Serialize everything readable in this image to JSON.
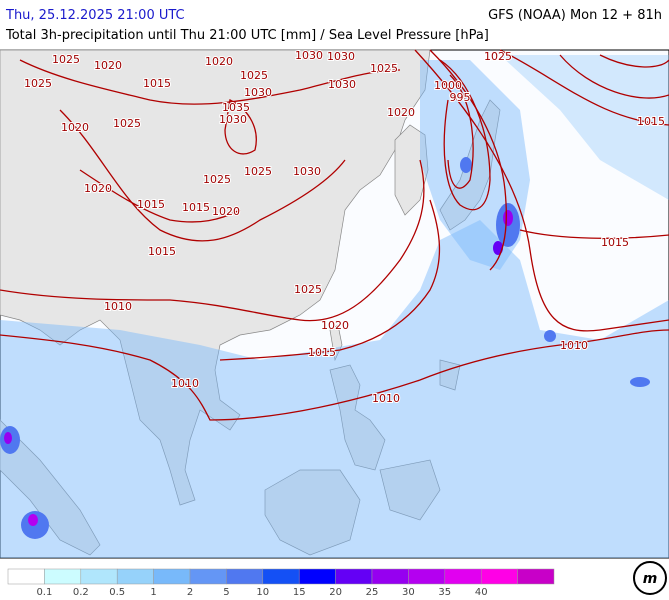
{
  "header": {
    "valid_time": "Thu, 25.12.2025 21:00 UTC",
    "model_run": "GFS (NOAA) Mon 12 + 81h",
    "subtitle": "Total 3h-precipitation until Thu 21:00 UTC [mm] / Sea Level Pressure [hPa]"
  },
  "isobar_labels": [
    "1025",
    "1020",
    "1015",
    "1020",
    "1025",
    "1030",
    "1030",
    "1025",
    "1025",
    "1025",
    "1025",
    "1020",
    "1030",
    "1035",
    "1030",
    "1030",
    "1020",
    "1000",
    "995",
    "1015",
    "1020",
    "1015",
    "1015",
    "1020",
    "1025",
    "1025",
    "1030",
    "1015",
    "1015",
    "1025",
    "1010",
    "1020",
    "1015",
    "1010",
    "1010",
    "1010"
  ],
  "legend": {
    "colors": [
      "#ffffff",
      "#ccfcff",
      "#b0e6fc",
      "#96d2fa",
      "#78b9fa",
      "#6496f5",
      "#5078f0",
      "#1450f5",
      "#0000ff",
      "#6400f5",
      "#9600f0",
      "#b400f0",
      "#e100f0",
      "#ff00e6",
      "#c800c8"
    ],
    "labels": [
      "0.1",
      "0.2",
      "0.5",
      "1",
      "2",
      "5",
      "10",
      "15",
      "20",
      "25",
      "30",
      "35",
      "40"
    ]
  }
}
